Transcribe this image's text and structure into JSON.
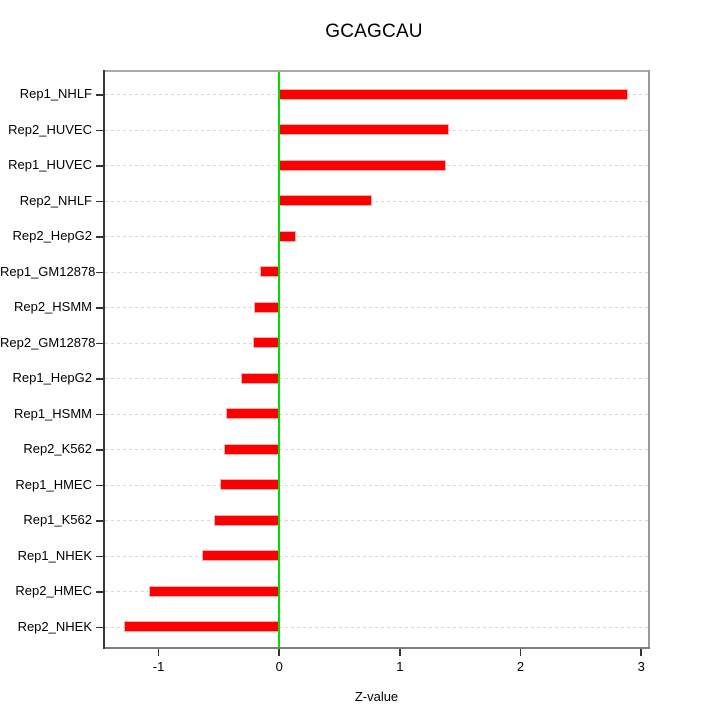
{
  "page": {
    "background": "#ffffff"
  },
  "chart_data": {
    "type": "bar",
    "orientation": "horizontal",
    "title": "GCAGCAU",
    "xlabel": "Z-value",
    "ylabel": "",
    "legend": "none",
    "grid": "dotted horizontal guide per category, full plot width",
    "categories": [
      "Rep1_NHLF",
      "Rep2_HUVEC",
      "Rep1_HUVEC",
      "Rep2_NHLF",
      "Rep2_HepG2",
      "Rep1_GM12878",
      "Rep2_HSMM",
      "Rep2_GM12878",
      "Rep1_HepG2",
      "Rep1_HSMM",
      "Rep2_K562",
      "Rep1_HMEC",
      "Rep1_K562",
      "Rep1_NHEK",
      "Rep2_HMEC",
      "Rep2_NHEK"
    ],
    "values": [
      2.89,
      1.41,
      1.38,
      0.77,
      0.14,
      -0.16,
      -0.21,
      -0.22,
      -0.32,
      -0.44,
      -0.46,
      -0.49,
      -0.54,
      -0.64,
      -1.08,
      -1.29
    ],
    "x_ticks": {
      "values": [
        -1,
        0,
        1,
        2,
        3
      ],
      "labels": [
        "-1",
        "0",
        "1",
        "2",
        "3"
      ]
    },
    "xlim": [
      -1.45,
      3.07
    ],
    "zero_line_x": 0,
    "colors": {
      "bar_fill": "#FA0000",
      "bar_edge": "#FFACAC",
      "zero_line": "#00DE00",
      "grid_line": "#D8D8D8",
      "box_top": "#ABABAB",
      "box_right": "#9A9A9A",
      "box_bottom": "#7E7E7E",
      "axis_left": "#383838",
      "tick": "#333333",
      "text": "#000000"
    }
  }
}
